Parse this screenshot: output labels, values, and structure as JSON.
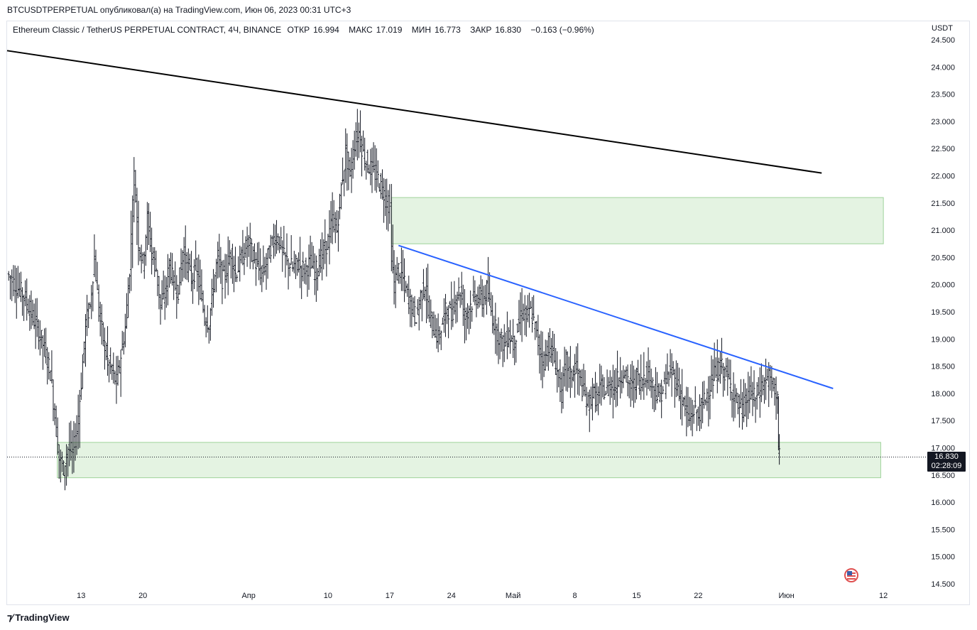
{
  "header": {
    "publish_line": "BTCUSDTPERPETUAL опубликовал(а) на TradingView.com, Июн 06, 2023 00:31 UTC+3"
  },
  "legend": {
    "symbol": "Ethereum Classic / TetherUS PERPETUAL CONTRACT, 4Ч, BINANCE",
    "open_label": "ОТКР",
    "open": "16.994",
    "high_label": "МАКС",
    "high": "17.019",
    "low_label": "МИН",
    "low": "16.773",
    "close_label": "ЗАКР",
    "close": "16.830",
    "change": "−0.163 (−0.96%)"
  },
  "price_axis": {
    "currency": "USDT"
  },
  "last_price": {
    "value": "16.830",
    "countdown": "02:28:09"
  },
  "footer": {
    "brand": "TradingView",
    "logo_icon": "tradingview-logo-icon"
  },
  "colors": {
    "candles": "#131722",
    "zone_fill": "#dff1dd",
    "zone_border": "#9fd39a",
    "trendline_black": "#000000",
    "trendline_blue": "#2962ff",
    "price_tag": "#131722"
  },
  "chart_data": {
    "type": "candlestick",
    "timeframe": "4Ч",
    "y_ticks": [
      "14.500",
      "15.000",
      "15.500",
      "16.000",
      "16.500",
      "17.000",
      "17.500",
      "18.000",
      "18.500",
      "19.000",
      "19.500",
      "20.000",
      "20.500",
      "21.000",
      "21.500",
      "22.000",
      "22.500",
      "23.000",
      "23.500",
      "24.000",
      "24.500"
    ],
    "ylim": [
      14.5,
      24.5
    ],
    "x_ticks": [
      {
        "label": "13",
        "x": 13.0
      },
      {
        "label": "20",
        "x": 20.0
      },
      {
        "label": "Апр",
        "x": 32.0
      },
      {
        "label": "10",
        "x": 41.0
      },
      {
        "label": "17",
        "x": 48.0
      },
      {
        "label": "24",
        "x": 55.0
      },
      {
        "label": "Май",
        "x": 62.0
      },
      {
        "label": "8",
        "x": 69.0
      },
      {
        "label": "15",
        "x": 76.0
      },
      {
        "label": "22",
        "x": 83.0
      },
      {
        "label": "Июн",
        "x": 93.0
      },
      {
        "label": "12",
        "x": 104.0
      }
    ],
    "xlim": [
      4.6,
      108.5
    ],
    "grid": false,
    "price_path": [
      [
        4.6,
        20.2
      ],
      [
        5.5,
        20.0
      ],
      [
        6.5,
        19.8
      ],
      [
        7.5,
        19.4
      ],
      [
        8.5,
        19.0
      ],
      [
        9.5,
        18.4
      ],
      [
        10.0,
        17.6
      ],
      [
        10.5,
        16.8
      ],
      [
        11.0,
        16.6
      ],
      [
        11.5,
        17.0
      ],
      [
        12.0,
        16.9
      ],
      [
        12.5,
        17.3
      ],
      [
        13.0,
        18.2
      ],
      [
        13.5,
        19.3
      ],
      [
        14.0,
        19.6
      ],
      [
        14.5,
        20.5
      ],
      [
        15.0,
        19.5
      ],
      [
        15.5,
        19.0
      ],
      [
        16.0,
        18.6
      ],
      [
        16.5,
        18.4
      ],
      [
        17.0,
        18.2
      ],
      [
        17.5,
        18.7
      ],
      [
        18.0,
        19.2
      ],
      [
        18.5,
        20.3
      ],
      [
        19.0,
        22.0
      ],
      [
        19.5,
        20.8
      ],
      [
        20.0,
        20.4
      ],
      [
        20.5,
        21.2
      ],
      [
        21.0,
        20.6
      ],
      [
        21.5,
        20.3
      ],
      [
        22.0,
        19.6
      ],
      [
        22.5,
        19.8
      ],
      [
        23.0,
        20.4
      ],
      [
        23.5,
        20.0
      ],
      [
        24.0,
        19.9
      ],
      [
        24.5,
        20.6
      ],
      [
        25.0,
        20.4
      ],
      [
        25.5,
        20.1
      ],
      [
        26.0,
        20.3
      ],
      [
        26.5,
        19.9
      ],
      [
        27.0,
        19.4
      ],
      [
        27.5,
        19.3
      ],
      [
        28.0,
        20.0
      ],
      [
        28.5,
        20.5
      ],
      [
        29.0,
        20.1
      ],
      [
        29.5,
        20.3
      ],
      [
        30.0,
        20.6
      ],
      [
        30.5,
        20.2
      ],
      [
        31.0,
        20.4
      ],
      [
        31.5,
        20.6
      ],
      [
        32.0,
        20.8
      ],
      [
        32.5,
        20.5
      ],
      [
        33.0,
        20.3
      ],
      [
        33.5,
        20.2
      ],
      [
        34.0,
        20.4
      ],
      [
        34.5,
        20.7
      ],
      [
        35.0,
        20.9
      ],
      [
        35.5,
        20.8
      ],
      [
        36.0,
        20.5
      ],
      [
        36.5,
        20.4
      ],
      [
        37.0,
        20.3
      ],
      [
        37.5,
        20.4
      ],
      [
        38.0,
        20.3
      ],
      [
        38.5,
        20.3
      ],
      [
        39.0,
        20.4
      ],
      [
        39.5,
        20.2
      ],
      [
        40.0,
        20.4
      ],
      [
        40.5,
        20.6
      ],
      [
        41.0,
        20.8
      ],
      [
        41.5,
        21.2
      ],
      [
        42.0,
        21.0
      ],
      [
        42.5,
        21.8
      ],
      [
        43.0,
        22.4
      ],
      [
        43.5,
        22.0
      ],
      [
        44.0,
        22.6
      ],
      [
        44.5,
        22.8
      ],
      [
        45.0,
        22.4
      ],
      [
        45.5,
        22.2
      ],
      [
        46.0,
        22.1
      ],
      [
        46.5,
        22.0
      ],
      [
        47.0,
        21.8
      ],
      [
        47.5,
        21.6
      ],
      [
        48.0,
        21.4
      ],
      [
        48.2,
        20.6
      ],
      [
        48.5,
        20.0
      ],
      [
        49.0,
        20.3
      ],
      [
        49.5,
        20.1
      ],
      [
        50.0,
        19.8
      ],
      [
        50.5,
        19.6
      ],
      [
        51.0,
        19.4
      ],
      [
        51.5,
        19.8
      ],
      [
        52.0,
        20.0
      ],
      [
        52.5,
        19.4
      ],
      [
        53.0,
        19.2
      ],
      [
        53.5,
        19.0
      ],
      [
        54.0,
        19.3
      ],
      [
        54.5,
        19.6
      ],
      [
        55.0,
        19.4
      ],
      [
        55.5,
        19.8
      ],
      [
        56.0,
        19.9
      ],
      [
        56.5,
        19.4
      ],
      [
        57.0,
        19.6
      ],
      [
        57.5,
        19.7
      ],
      [
        58.0,
        19.8
      ],
      [
        58.5,
        19.7
      ],
      [
        59.0,
        19.9
      ],
      [
        59.5,
        19.5
      ],
      [
        60.0,
        19.2
      ],
      [
        60.5,
        19.0
      ],
      [
        61.0,
        18.9
      ],
      [
        61.5,
        19.1
      ],
      [
        62.0,
        18.9
      ],
      [
        62.5,
        19.2
      ],
      [
        63.0,
        19.5
      ],
      [
        63.5,
        19.4
      ],
      [
        64.0,
        19.5
      ],
      [
        64.5,
        19.2
      ],
      [
        65.0,
        18.8
      ],
      [
        65.5,
        18.6
      ],
      [
        66.0,
        18.9
      ],
      [
        66.5,
        18.7
      ],
      [
        67.0,
        18.4
      ],
      [
        67.5,
        18.0
      ],
      [
        68.0,
        18.6
      ],
      [
        68.5,
        18.3
      ],
      [
        69.0,
        18.5
      ],
      [
        69.5,
        18.3
      ],
      [
        70.0,
        18.0
      ],
      [
        70.5,
        17.8
      ],
      [
        71.0,
        18.0
      ],
      [
        71.5,
        17.9
      ],
      [
        72.0,
        18.1
      ],
      [
        72.5,
        18.0
      ],
      [
        73.0,
        18.2
      ],
      [
        73.5,
        18.1
      ],
      [
        74.0,
        18.3
      ],
      [
        74.5,
        18.4
      ],
      [
        75.0,
        18.2
      ],
      [
        75.5,
        18.1
      ],
      [
        76.0,
        18.3
      ],
      [
        76.5,
        18.2
      ],
      [
        77.0,
        18.4
      ],
      [
        77.5,
        18.3
      ],
      [
        78.0,
        18.1
      ],
      [
        78.5,
        17.9
      ],
      [
        79.0,
        18.1
      ],
      [
        79.5,
        18.3
      ],
      [
        80.0,
        18.4
      ],
      [
        80.5,
        18.2
      ],
      [
        81.0,
        18.0
      ],
      [
        81.5,
        17.7
      ],
      [
        82.0,
        17.5
      ],
      [
        82.5,
        17.7
      ],
      [
        83.0,
        17.6
      ],
      [
        83.5,
        17.8
      ],
      [
        84.0,
        18.0
      ],
      [
        84.5,
        18.2
      ],
      [
        85.0,
        18.4
      ],
      [
        85.5,
        18.5
      ],
      [
        86.0,
        18.4
      ],
      [
        86.5,
        18.2
      ],
      [
        87.0,
        18.0
      ],
      [
        87.5,
        17.8
      ],
      [
        88.0,
        17.7
      ],
      [
        88.5,
        17.9
      ],
      [
        89.0,
        18.0
      ],
      [
        89.5,
        17.9
      ],
      [
        90.0,
        18.1
      ],
      [
        90.5,
        18.2
      ],
      [
        91.0,
        18.3
      ],
      [
        91.5,
        18.1
      ],
      [
        92.0,
        18.0
      ],
      [
        92.1,
        16.9
      ],
      [
        92.2,
        16.83
      ]
    ],
    "zones": [
      {
        "x0": 48.2,
        "x1": 104.0,
        "y0": 20.75,
        "y1": 21.6
      },
      {
        "x0": 10.3,
        "x1": 103.7,
        "y0": 16.45,
        "y1": 17.1
      }
    ],
    "trendlines": [
      {
        "color": "black",
        "x0": 4.6,
        "y0": 24.3,
        "x1": 97.0,
        "y1": 22.05
      },
      {
        "color": "blue",
        "x0": 49.0,
        "y0": 20.72,
        "x1": 98.3,
        "y1": 18.09
      }
    ],
    "last_price_line": 16.83
  }
}
